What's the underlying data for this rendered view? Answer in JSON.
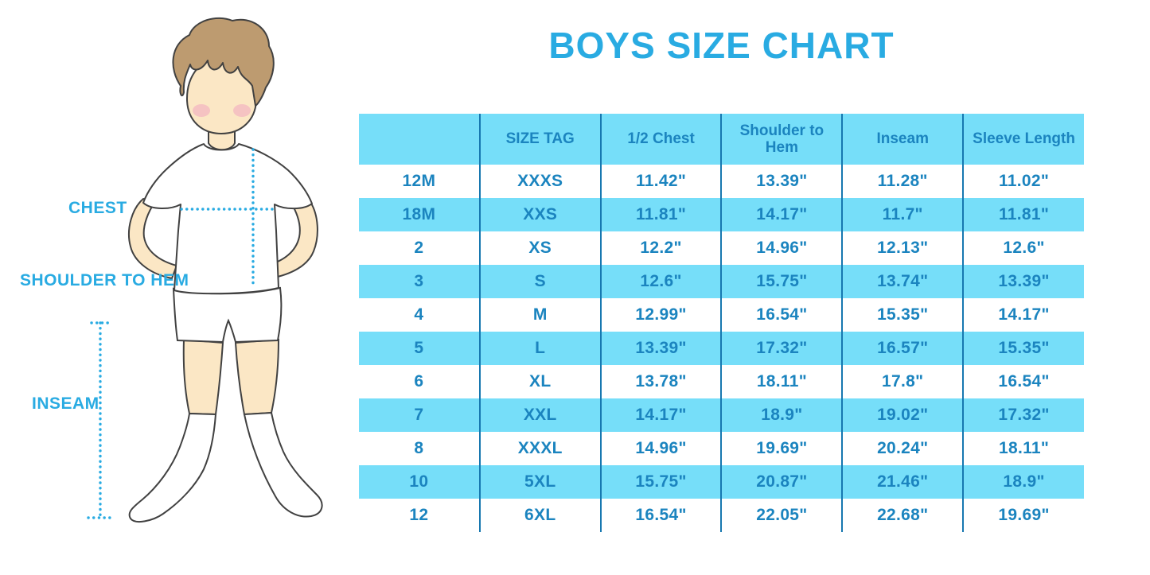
{
  "title": "BOYS SIZE CHART",
  "figure": {
    "labels": {
      "chest": "CHEST",
      "shoulder_to_hem": "SHOULDER TO HEM",
      "inseam": "INSEAM"
    }
  },
  "chart_data": {
    "type": "table",
    "title": "BOYS SIZE CHART",
    "columns": [
      "",
      "SIZE TAG",
      "1/2 Chest",
      "Shoulder to Hem",
      "Inseam",
      "Sleeve Length"
    ],
    "rows": [
      [
        "12M",
        "XXXS",
        "11.42\"",
        "13.39\"",
        "11.28\"",
        "11.02\""
      ],
      [
        "18M",
        "XXS",
        "11.81\"",
        "14.17\"",
        "11.7\"",
        "11.81\""
      ],
      [
        "2",
        "XS",
        "12.2\"",
        "14.96\"",
        "12.13\"",
        "12.6\""
      ],
      [
        "3",
        "S",
        "12.6\"",
        "15.75\"",
        "13.74\"",
        "13.39\""
      ],
      [
        "4",
        "M",
        "12.99\"",
        "16.54\"",
        "15.35\"",
        "14.17\""
      ],
      [
        "5",
        "L",
        "13.39\"",
        "17.32\"",
        "16.57\"",
        "15.35\""
      ],
      [
        "6",
        "XL",
        "13.78\"",
        "18.11\"",
        "17.8\"",
        "16.54\""
      ],
      [
        "7",
        "XXL",
        "14.17\"",
        "18.9\"",
        "19.02\"",
        "17.32\""
      ],
      [
        "8",
        "XXXL",
        "14.96\"",
        "19.69\"",
        "20.24\"",
        "18.11\""
      ],
      [
        "10",
        "5XL",
        "15.75\"",
        "20.87\"",
        "21.46\"",
        "18.9\""
      ],
      [
        "12",
        "6XL",
        "16.54\"",
        "22.05\"",
        "22.68\"",
        "19.69\""
      ]
    ],
    "layout": {
      "header_fill": "striped",
      "row_striping": [
        "white",
        "blue"
      ],
      "grid": "vertical-dividers-only"
    }
  },
  "colors": {
    "accent_blue": "#29ABE2",
    "band_blue": "#76DEF9",
    "table_text_blue": "#1B84BF",
    "divider_blue": "#1778B0",
    "skin": "#FBE7C5",
    "hair": "#BD9B70",
    "cheek": "#F2ACC0",
    "outline": "#414141"
  }
}
